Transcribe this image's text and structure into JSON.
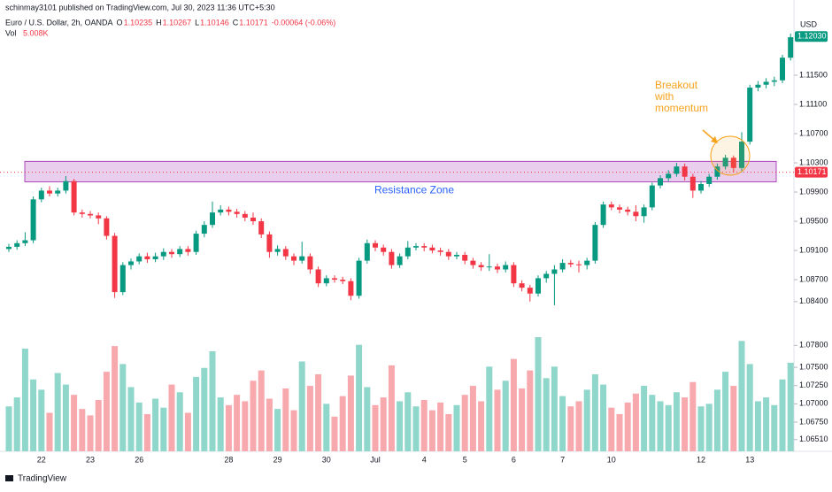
{
  "chart_data": {
    "type": "candlestick",
    "publisher": "schinmay3101 published on TradingView.com, Jul 30, 2023 11:36 UTC+5:30",
    "symbol": "Euro / U.S. Dollar, 2h, OANDA",
    "legend_ohlc": [
      {
        "label": "O",
        "value": "1.10235"
      },
      {
        "label": "H",
        "value": "1.10267"
      },
      {
        "label": "L",
        "value": "1.10146"
      },
      {
        "label": "C",
        "value": "1.10171"
      }
    ],
    "change": "-0.00064 (-0.06%)",
    "volume_label": "Vol",
    "volume_value": "5.008K",
    "currency": "USD",
    "annotation": [
      "Breakout",
      "with",
      "momentum"
    ],
    "resistance_zone": {
      "label": "Resistance Zone",
      "top": 1.1032,
      "bottom": 1.1004
    },
    "current_price": {
      "value": 1.10171,
      "label": "1.10171"
    },
    "last_price": {
      "value": 1.1203,
      "label": "1.12030"
    },
    "footer": "TradingView",
    "up_color": "#089981",
    "down_color": "#f23645",
    "ylim": [
      1.0635,
      1.1253
    ],
    "yticks": [
      {
        "value": 1.115,
        "label": "1.11500"
      },
      {
        "value": 1.111,
        "label": "1.11100"
      },
      {
        "value": 1.107,
        "label": "1.10700"
      },
      {
        "value": 1.103,
        "label": "1.10300"
      },
      {
        "value": 1.099,
        "label": "1.09900"
      },
      {
        "value": 1.095,
        "label": "1.09500"
      },
      {
        "value": 1.091,
        "label": "1.09100"
      },
      {
        "value": 1.087,
        "label": "1.08700"
      },
      {
        "value": 1.084,
        "label": "1.08400"
      },
      {
        "value": 1.078,
        "label": "1.07800"
      },
      {
        "value": 1.075,
        "label": "1.07500"
      },
      {
        "value": 1.0725,
        "label": "1.07250"
      },
      {
        "value": 1.07,
        "label": "1.07000"
      },
      {
        "value": 1.0675,
        "label": "1.06750"
      },
      {
        "value": 1.0651,
        "label": "1.06510"
      }
    ],
    "categories": [
      null,
      null,
      null,
      null,
      "22",
      null,
      null,
      null,
      null,
      null,
      "23",
      null,
      null,
      null,
      null,
      null,
      "26",
      null,
      null,
      null,
      null,
      null,
      null,
      null,
      null,
      null,
      null,
      "28",
      null,
      null,
      null,
      null,
      null,
      "29",
      null,
      null,
      null,
      null,
      null,
      "30",
      null,
      null,
      null,
      null,
      null,
      "Jul",
      null,
      null,
      null,
      null,
      null,
      "4",
      null,
      null,
      null,
      null,
      "5",
      null,
      null,
      null,
      null,
      null,
      "6",
      null,
      null,
      null,
      null,
      null,
      "7",
      null,
      null,
      null,
      null,
      null,
      "10",
      null,
      null,
      null,
      null,
      null,
      null,
      null,
      null,
      null,
      null,
      "12",
      null,
      null,
      null,
      null,
      null,
      "13",
      null,
      null,
      null,
      null,
      null
    ],
    "open": [
      1.0912,
      1.0915,
      1.092,
      1.0924,
      1.098,
      1.0992,
      1.0988,
      1.0992,
      1.1005,
      1.0962,
      1.096,
      1.0958,
      1.0954,
      1.093,
      1.0853,
      1.089,
      1.0895,
      1.0902,
      1.0898,
      1.0902,
      1.0908,
      1.0905,
      1.0912,
      1.0908,
      1.0933,
      1.0945,
      1.0962,
      1.0966,
      1.0963,
      1.096,
      1.0955,
      1.095,
      1.0932,
      1.0908,
      1.0912,
      1.0902,
      1.0896,
      1.0902,
      1.0884,
      1.0865,
      1.0872,
      1.087,
      1.0868,
      1.0848,
      1.0896,
      1.092,
      1.0914,
      1.0908,
      1.089,
      1.0902,
      1.0914,
      1.0916,
      1.0914,
      1.091,
      1.0908,
      1.0902,
      1.0904,
      1.0896,
      1.089,
      1.0887,
      1.0888,
      1.0884,
      1.089,
      1.0865,
      1.0859,
      1.0851,
      1.0872,
      1.0878,
      1.0884,
      1.0893,
      1.0891,
      1.089,
      1.0896,
      1.0945,
      1.0973,
      1.0969,
      1.0966,
      1.0963,
      1.0957,
      1.0969,
      1.0999,
      1.1009,
      1.1015,
      1.1025,
      1.1011,
      1.0992,
      1.1001,
      1.1011,
      1.1025,
      1.1037,
      1.1023,
      1.1059,
      1.1133,
      1.1137,
      1.1141,
      1.1143,
      1.1174
    ],
    "high": [
      1.0919,
      1.0924,
      1.0935,
      1.0984,
      1.0996,
      1.0998,
      1.0996,
      1.1012,
      1.1008,
      1.0966,
      1.0964,
      1.0962,
      1.0957,
      1.0934,
      1.0894,
      1.0899,
      1.0906,
      1.0907,
      1.0907,
      1.0913,
      1.0912,
      1.0916,
      1.0916,
      1.0937,
      1.095,
      1.0977,
      1.0972,
      1.097,
      1.0967,
      1.0964,
      1.0962,
      1.0954,
      1.0936,
      1.0917,
      1.0916,
      1.0906,
      1.0922,
      1.0906,
      1.0888,
      1.0876,
      1.0876,
      1.0874,
      1.0872,
      1.09,
      1.0925,
      1.0924,
      1.0918,
      1.0912,
      1.0906,
      1.0923,
      1.092,
      1.092,
      1.0918,
      1.0914,
      1.0912,
      1.0908,
      1.0908,
      1.09,
      1.0894,
      1.0905,
      1.0892,
      1.0895,
      1.0894,
      1.0869,
      1.0863,
      1.0876,
      1.0882,
      1.089,
      1.0898,
      1.0897,
      1.0896,
      1.09,
      1.0949,
      1.0977,
      1.0977,
      1.0973,
      1.097,
      1.0972,
      1.0973,
      1.1003,
      1.1013,
      1.102,
      1.103,
      1.1029,
      1.1015,
      1.1005,
      1.1015,
      1.1029,
      1.1041,
      1.104,
      1.1072,
      1.1137,
      1.1142,
      1.1146,
      1.1148,
      1.1178,
      1.1207
    ],
    "low": [
      1.0908,
      1.0911,
      1.0916,
      1.092,
      1.0976,
      1.0984,
      1.0984,
      1.0988,
      1.0958,
      1.0955,
      1.0954,
      1.0946,
      1.0925,
      1.0845,
      1.0849,
      1.0884,
      1.0891,
      1.0893,
      1.0894,
      1.0897,
      1.09,
      1.0901,
      1.0903,
      1.0904,
      1.0928,
      1.0941,
      1.0958,
      1.0958,
      1.0955,
      1.095,
      1.0945,
      1.0927,
      1.09,
      1.0903,
      1.0897,
      1.089,
      1.0892,
      1.0878,
      1.086,
      1.0861,
      1.0866,
      1.0864,
      1.0842,
      1.0844,
      1.0892,
      1.0909,
      1.0903,
      1.0885,
      1.0886,
      1.0898,
      1.091,
      1.0909,
      1.0906,
      1.0903,
      1.0897,
      1.0898,
      1.0891,
      1.0885,
      1.0882,
      1.0882,
      1.0879,
      1.088,
      1.086,
      1.0854,
      1.084,
      1.0847,
      1.0866,
      1.0835,
      1.088,
      1.0887,
      1.088,
      1.0884,
      1.0892,
      1.0941,
      1.0965,
      1.0961,
      1.0958,
      1.095,
      1.0948,
      1.0965,
      1.0995,
      1.1005,
      1.1011,
      1.1006,
      1.0982,
      1.0988,
      1.0997,
      1.1007,
      1.1021,
      1.1017,
      1.1017,
      1.1055,
      1.1128,
      1.1132,
      1.1135,
      1.1139,
      1.117
    ],
    "close": [
      1.0915,
      1.092,
      1.0924,
      1.098,
      1.0992,
      1.0988,
      1.0992,
      1.1005,
      1.0962,
      1.096,
      1.0958,
      1.0954,
      1.093,
      1.0853,
      1.089,
      1.0895,
      1.0902,
      1.0898,
      1.0902,
      1.0908,
      1.0905,
      1.0912,
      1.0908,
      1.0933,
      1.0945,
      1.0962,
      1.0966,
      1.0963,
      1.096,
      1.0955,
      1.095,
      1.0932,
      1.0908,
      1.0912,
      1.0902,
      1.0896,
      1.0902,
      1.0884,
      1.0865,
      1.0872,
      1.087,
      1.0868,
      1.0848,
      1.0896,
      1.092,
      1.0914,
      1.0908,
      1.089,
      1.0902,
      1.0914,
      1.0916,
      1.0914,
      1.091,
      1.0908,
      1.0902,
      1.0904,
      1.0896,
      1.089,
      1.0887,
      1.0888,
      1.0884,
      1.089,
      1.0865,
      1.0859,
      1.0851,
      1.0872,
      1.0878,
      1.0884,
      1.0893,
      1.0891,
      1.089,
      1.0896,
      1.0945,
      1.0973,
      1.0969,
      1.0966,
      1.0963,
      1.0957,
      1.0969,
      1.0999,
      1.1009,
      1.1015,
      1.1025,
      1.1011,
      1.0992,
      1.1001,
      1.1011,
      1.1025,
      1.1037,
      1.1023,
      1.1059,
      1.1133,
      1.1137,
      1.1141,
      1.1143,
      1.1174,
      1.1202
    ],
    "volume": {
      "ylim": [
        0,
        10
      ],
      "values": [
        3.5,
        4.2,
        8.0,
        5.6,
        4.8,
        3.0,
        6.1,
        5.2,
        4.4,
        3.3,
        2.8,
        4.0,
        6.2,
        8.2,
        6.8,
        5.0,
        3.8,
        2.9,
        4.1,
        3.4,
        5.2,
        4.6,
        3.0,
        5.8,
        6.5,
        7.8,
        4.2,
        3.6,
        4.4,
        3.9,
        5.5,
        6.3,
        4.1,
        3.3,
        4.9,
        3.2,
        7.0,
        5.1,
        6.0,
        3.7,
        2.7,
        4.3,
        5.9,
        8.3,
        5.0,
        3.6,
        4.2,
        6.7,
        3.9,
        4.6,
        3.5,
        4.0,
        3.2,
        3.8,
        2.9,
        3.6,
        4.4,
        5.1,
        3.9,
        6.6,
        4.8,
        5.5,
        7.2,
        4.9,
        6.3,
        8.9,
        5.7,
        6.6,
        4.3,
        3.5,
        3.9,
        4.8,
        6.0,
        5.2,
        3.4,
        2.9,
        3.8,
        4.5,
        5.1,
        4.4,
        3.9,
        3.6,
        4.6,
        4.2,
        5.4,
        3.5,
        3.7,
        4.8,
        6.2,
        5.1,
        8.6,
        6.8,
        3.9,
        4.2,
        3.6,
        5.6,
        6.9
      ]
    }
  }
}
